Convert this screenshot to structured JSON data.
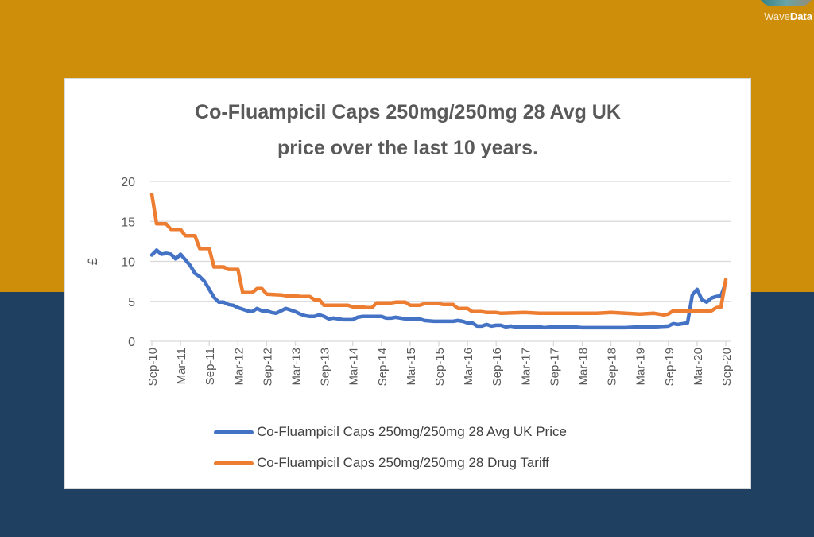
{
  "logo": {
    "text_light": "Wave",
    "text_bold": "Data"
  },
  "colors": {
    "background_top": "#CF8E0A",
    "background_bottom": "#1F4060",
    "series_blue": "#4472C4",
    "series_orange": "#ED7D31"
  },
  "chart_data": {
    "type": "line",
    "title_line1": "Co-Fluampicil Caps  250mg/250mg 28 Avg UK",
    "title_line2": "price over the last 10 years.",
    "ylabel": "£",
    "xlabel": "",
    "ylim": [
      0,
      20
    ],
    "yticks": [
      "0",
      "5",
      "10",
      "15",
      "20"
    ],
    "xlim": [
      "2010-09",
      "2020-09"
    ],
    "xtick_labels": [
      "Sep-10",
      "Mar-11",
      "Sep-11",
      "Mar-12",
      "Sep-12",
      "Mar-13",
      "Sep-13",
      "Mar-14",
      "Sep-14",
      "Mar-15",
      "Sep-15",
      "Mar-16",
      "Sep-16",
      "Mar-17",
      "Sep-17",
      "Mar-18",
      "Sep-18",
      "Mar-19",
      "Sep-19",
      "Mar-20",
      "Sep-20"
    ],
    "grid": true,
    "legend_position": "bottom",
    "series": [
      {
        "name": "Co-Fluampicil Caps 250mg/250mg 28 Avg UK Price",
        "color": "#4472C4",
        "points": [
          [
            "2010-09",
            10.8
          ],
          [
            "2010-10",
            11.4
          ],
          [
            "2010-11",
            10.9
          ],
          [
            "2010-12",
            11.0
          ],
          [
            "2011-01",
            10.9
          ],
          [
            "2011-02",
            10.3
          ],
          [
            "2011-03",
            10.9
          ],
          [
            "2011-04",
            10.2
          ],
          [
            "2011-05",
            9.5
          ],
          [
            "2011-06",
            8.5
          ],
          [
            "2011-07",
            8.1
          ],
          [
            "2011-08",
            7.5
          ],
          [
            "2011-09",
            6.5
          ],
          [
            "2011-10",
            5.5
          ],
          [
            "2011-11",
            4.9
          ],
          [
            "2011-12",
            4.9
          ],
          [
            "2012-01",
            4.6
          ],
          [
            "2012-02",
            4.5
          ],
          [
            "2012-03",
            4.2
          ],
          [
            "2012-04",
            4.0
          ],
          [
            "2012-05",
            3.8
          ],
          [
            "2012-06",
            3.7
          ],
          [
            "2012-07",
            4.1
          ],
          [
            "2012-08",
            3.8
          ],
          [
            "2012-09",
            3.8
          ],
          [
            "2012-10",
            3.6
          ],
          [
            "2012-11",
            3.5
          ],
          [
            "2012-12",
            3.8
          ],
          [
            "2013-01",
            4.1
          ],
          [
            "2013-02",
            3.9
          ],
          [
            "2013-03",
            3.7
          ],
          [
            "2013-04",
            3.4
          ],
          [
            "2013-05",
            3.2
          ],
          [
            "2013-06",
            3.1
          ],
          [
            "2013-07",
            3.1
          ],
          [
            "2013-08",
            3.3
          ],
          [
            "2013-09",
            3.1
          ],
          [
            "2013-10",
            2.8
          ],
          [
            "2013-11",
            2.9
          ],
          [
            "2013-12",
            2.8
          ],
          [
            "2014-01",
            2.7
          ],
          [
            "2014-02",
            2.7
          ],
          [
            "2014-03",
            2.7
          ],
          [
            "2014-04",
            3.0
          ],
          [
            "2014-05",
            3.1
          ],
          [
            "2014-06",
            3.1
          ],
          [
            "2014-07",
            3.1
          ],
          [
            "2014-08",
            3.1
          ],
          [
            "2014-09",
            3.1
          ],
          [
            "2014-10",
            2.9
          ],
          [
            "2014-11",
            2.9
          ],
          [
            "2014-12",
            3.0
          ],
          [
            "2015-01",
            2.9
          ],
          [
            "2015-02",
            2.8
          ],
          [
            "2015-03",
            2.8
          ],
          [
            "2015-04",
            2.8
          ],
          [
            "2015-05",
            2.8
          ],
          [
            "2015-06",
            2.6
          ],
          [
            "2015-08",
            2.5
          ],
          [
            "2015-12",
            2.5
          ],
          [
            "2016-01",
            2.6
          ],
          [
            "2016-02",
            2.5
          ],
          [
            "2016-03",
            2.3
          ],
          [
            "2016-04",
            2.3
          ],
          [
            "2016-05",
            1.9
          ],
          [
            "2016-06",
            1.9
          ],
          [
            "2016-07",
            2.1
          ],
          [
            "2016-08",
            1.9
          ],
          [
            "2016-09",
            2.0
          ],
          [
            "2016-10",
            2.0
          ],
          [
            "2016-11",
            1.8
          ],
          [
            "2016-12",
            1.9
          ],
          [
            "2017-01",
            1.8
          ],
          [
            "2017-06",
            1.8
          ],
          [
            "2017-07",
            1.7
          ],
          [
            "2017-09",
            1.8
          ],
          [
            "2018-01",
            1.8
          ],
          [
            "2018-03",
            1.7
          ],
          [
            "2018-06",
            1.7
          ],
          [
            "2018-09",
            1.7
          ],
          [
            "2018-12",
            1.7
          ],
          [
            "2019-03",
            1.8
          ],
          [
            "2019-06",
            1.8
          ],
          [
            "2019-09",
            1.9
          ],
          [
            "2019-10",
            2.2
          ],
          [
            "2019-11",
            2.1
          ],
          [
            "2019-12",
            2.2
          ],
          [
            "2020-01",
            2.3
          ],
          [
            "2020-02",
            5.8
          ],
          [
            "2020-03",
            6.5
          ],
          [
            "2020-04",
            5.2
          ],
          [
            "2020-05",
            4.9
          ],
          [
            "2020-06",
            5.4
          ],
          [
            "2020-07",
            5.6
          ],
          [
            "2020-08",
            5.7
          ],
          [
            "2020-09",
            7.3
          ]
        ]
      },
      {
        "name": "Co-Fluampicil Caps 250mg/250mg 28 Drug Tariff",
        "color": "#ED7D31",
        "points": [
          [
            "2010-09",
            18.4
          ],
          [
            "2010-10",
            14.7
          ],
          [
            "2010-12",
            14.7
          ],
          [
            "2011-01",
            14.0
          ],
          [
            "2011-03",
            14.0
          ],
          [
            "2011-04",
            13.2
          ],
          [
            "2011-06",
            13.2
          ],
          [
            "2011-07",
            11.6
          ],
          [
            "2011-09",
            11.6
          ],
          [
            "2011-10",
            9.3
          ],
          [
            "2011-12",
            9.3
          ],
          [
            "2012-01",
            9.0
          ],
          [
            "2012-03",
            9.0
          ],
          [
            "2012-04",
            6.1
          ],
          [
            "2012-06",
            6.1
          ],
          [
            "2012-07",
            6.6
          ],
          [
            "2012-08",
            6.6
          ],
          [
            "2012-09",
            5.9
          ],
          [
            "2012-12",
            5.8
          ],
          [
            "2013-01",
            5.7
          ],
          [
            "2013-03",
            5.7
          ],
          [
            "2013-04",
            5.6
          ],
          [
            "2013-06",
            5.6
          ],
          [
            "2013-07",
            5.2
          ],
          [
            "2013-08",
            5.2
          ],
          [
            "2013-09",
            4.5
          ],
          [
            "2014-02",
            4.5
          ],
          [
            "2014-03",
            4.3
          ],
          [
            "2014-05",
            4.3
          ],
          [
            "2014-06",
            4.2
          ],
          [
            "2014-07",
            4.2
          ],
          [
            "2014-08",
            4.8
          ],
          [
            "2014-11",
            4.8
          ],
          [
            "2014-12",
            4.9
          ],
          [
            "2015-02",
            4.9
          ],
          [
            "2015-03",
            4.5
          ],
          [
            "2015-05",
            4.5
          ],
          [
            "2015-06",
            4.7
          ],
          [
            "2015-09",
            4.7
          ],
          [
            "2015-10",
            4.6
          ],
          [
            "2015-12",
            4.6
          ],
          [
            "2016-01",
            4.1
          ],
          [
            "2016-03",
            4.1
          ],
          [
            "2016-04",
            3.7
          ],
          [
            "2016-06",
            3.7
          ],
          [
            "2016-07",
            3.6
          ],
          [
            "2016-09",
            3.6
          ],
          [
            "2016-10",
            3.5
          ],
          [
            "2017-03",
            3.6
          ],
          [
            "2017-06",
            3.5
          ],
          [
            "2017-09",
            3.5
          ],
          [
            "2018-06",
            3.5
          ],
          [
            "2018-09",
            3.6
          ],
          [
            "2018-12",
            3.5
          ],
          [
            "2019-03",
            3.4
          ],
          [
            "2019-06",
            3.5
          ],
          [
            "2019-08",
            3.3
          ],
          [
            "2019-09",
            3.4
          ],
          [
            "2019-10",
            3.8
          ],
          [
            "2020-06",
            3.8
          ],
          [
            "2020-07",
            4.2
          ],
          [
            "2020-08",
            4.3
          ],
          [
            "2020-09",
            7.7
          ]
        ]
      }
    ]
  }
}
